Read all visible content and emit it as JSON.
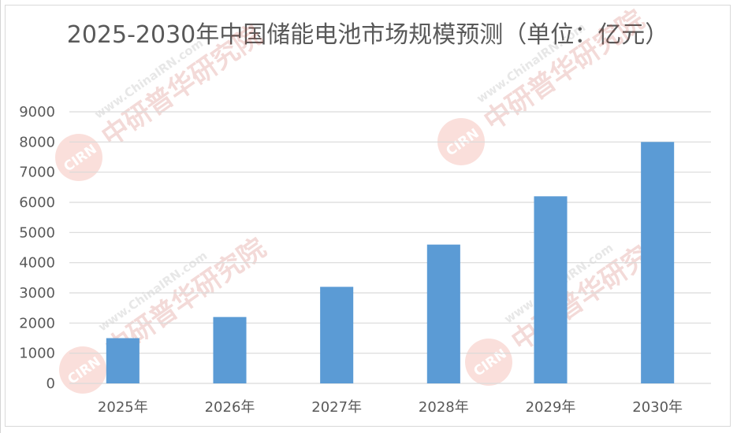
{
  "chart_data": {
    "type": "bar",
    "title": "2025-2030年中国储能电池市场规模预测（单位：亿元）",
    "categories": [
      "2025年",
      "2026年",
      "2027年",
      "2028年",
      "2029年",
      "2030年"
    ],
    "values": [
      1500,
      2200,
      3200,
      4600,
      6200,
      8000
    ],
    "y_ticks": [
      "0",
      "1000",
      "2000",
      "3000",
      "4000",
      "5000",
      "6000",
      "7000",
      "8000",
      "9000"
    ],
    "ylim": [
      0,
      9000
    ],
    "grid": true,
    "legend": "none",
    "bar_color": "#5b9bd5"
  },
  "watermark": {
    "logo_text": "CIRN",
    "brand_text": "中研普华研究院",
    "url_text": "www.ChinaIRN.com"
  }
}
